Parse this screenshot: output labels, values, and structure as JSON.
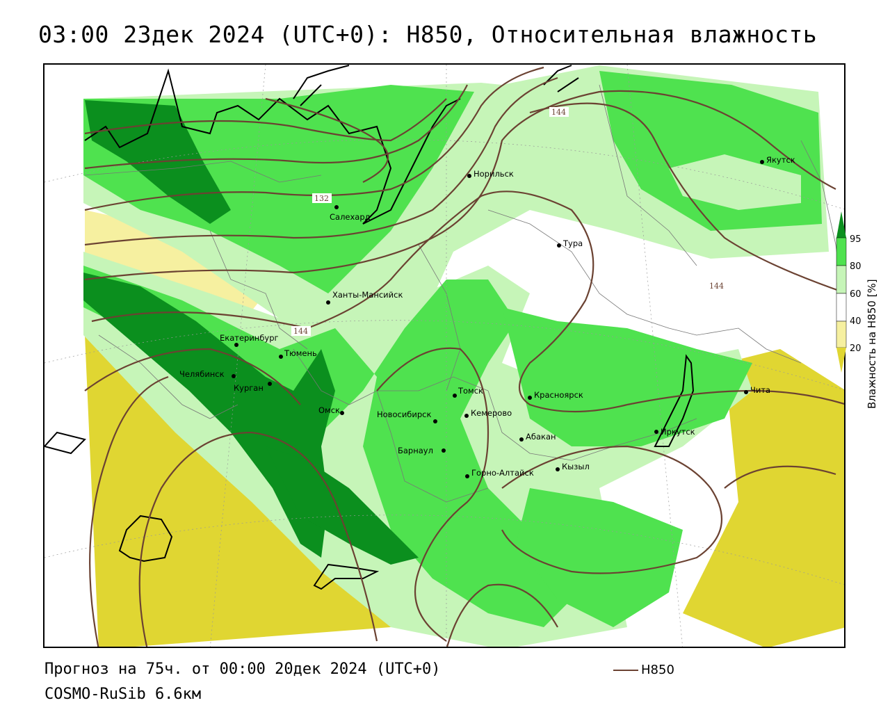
{
  "title": "03:00 23дек 2024 (UTC+0): H850, Относительная влажность",
  "footer": {
    "forecast": "Прогноз на 75ч. от 00:00 20дек 2024 (UTC+0)",
    "model": "COSMO-RuSib 6.6км"
  },
  "legend": {
    "contour_label": "H850",
    "colorbar_label": "Влажность на H850 [%]",
    "ticks": [
      "95",
      "80",
      "60",
      "40",
      "20"
    ]
  },
  "colors": {
    "rh_95": "#0b8f1e",
    "rh_80": "#4fe24f",
    "rh_60": "#c6f5b8",
    "rh_40": "#ffffff",
    "rh_20": "#f6f0a0",
    "rh_0": "#e0d632",
    "contour": "#6b4232",
    "coast": "#000000"
  },
  "isolines": [
    "132",
    "144",
    "144",
    "144"
  ],
  "cities": [
    {
      "name": "Норильск"
    },
    {
      "name": "Якутск"
    },
    {
      "name": "Салехард"
    },
    {
      "name": "Тура"
    },
    {
      "name": "Ханты-Мансийск"
    },
    {
      "name": "Екатеринбург"
    },
    {
      "name": "Тюмень"
    },
    {
      "name": "Челябинск"
    },
    {
      "name": "Курган"
    },
    {
      "name": "Омск"
    },
    {
      "name": "Новосибирск"
    },
    {
      "name": "Томск"
    },
    {
      "name": "Кемерово"
    },
    {
      "name": "Красноярск"
    },
    {
      "name": "Барнаул"
    },
    {
      "name": "Абакан"
    },
    {
      "name": "Горно-Алтайск"
    },
    {
      "name": "Кызыл"
    },
    {
      "name": "Иркутск"
    },
    {
      "name": "Чита"
    }
  ]
}
